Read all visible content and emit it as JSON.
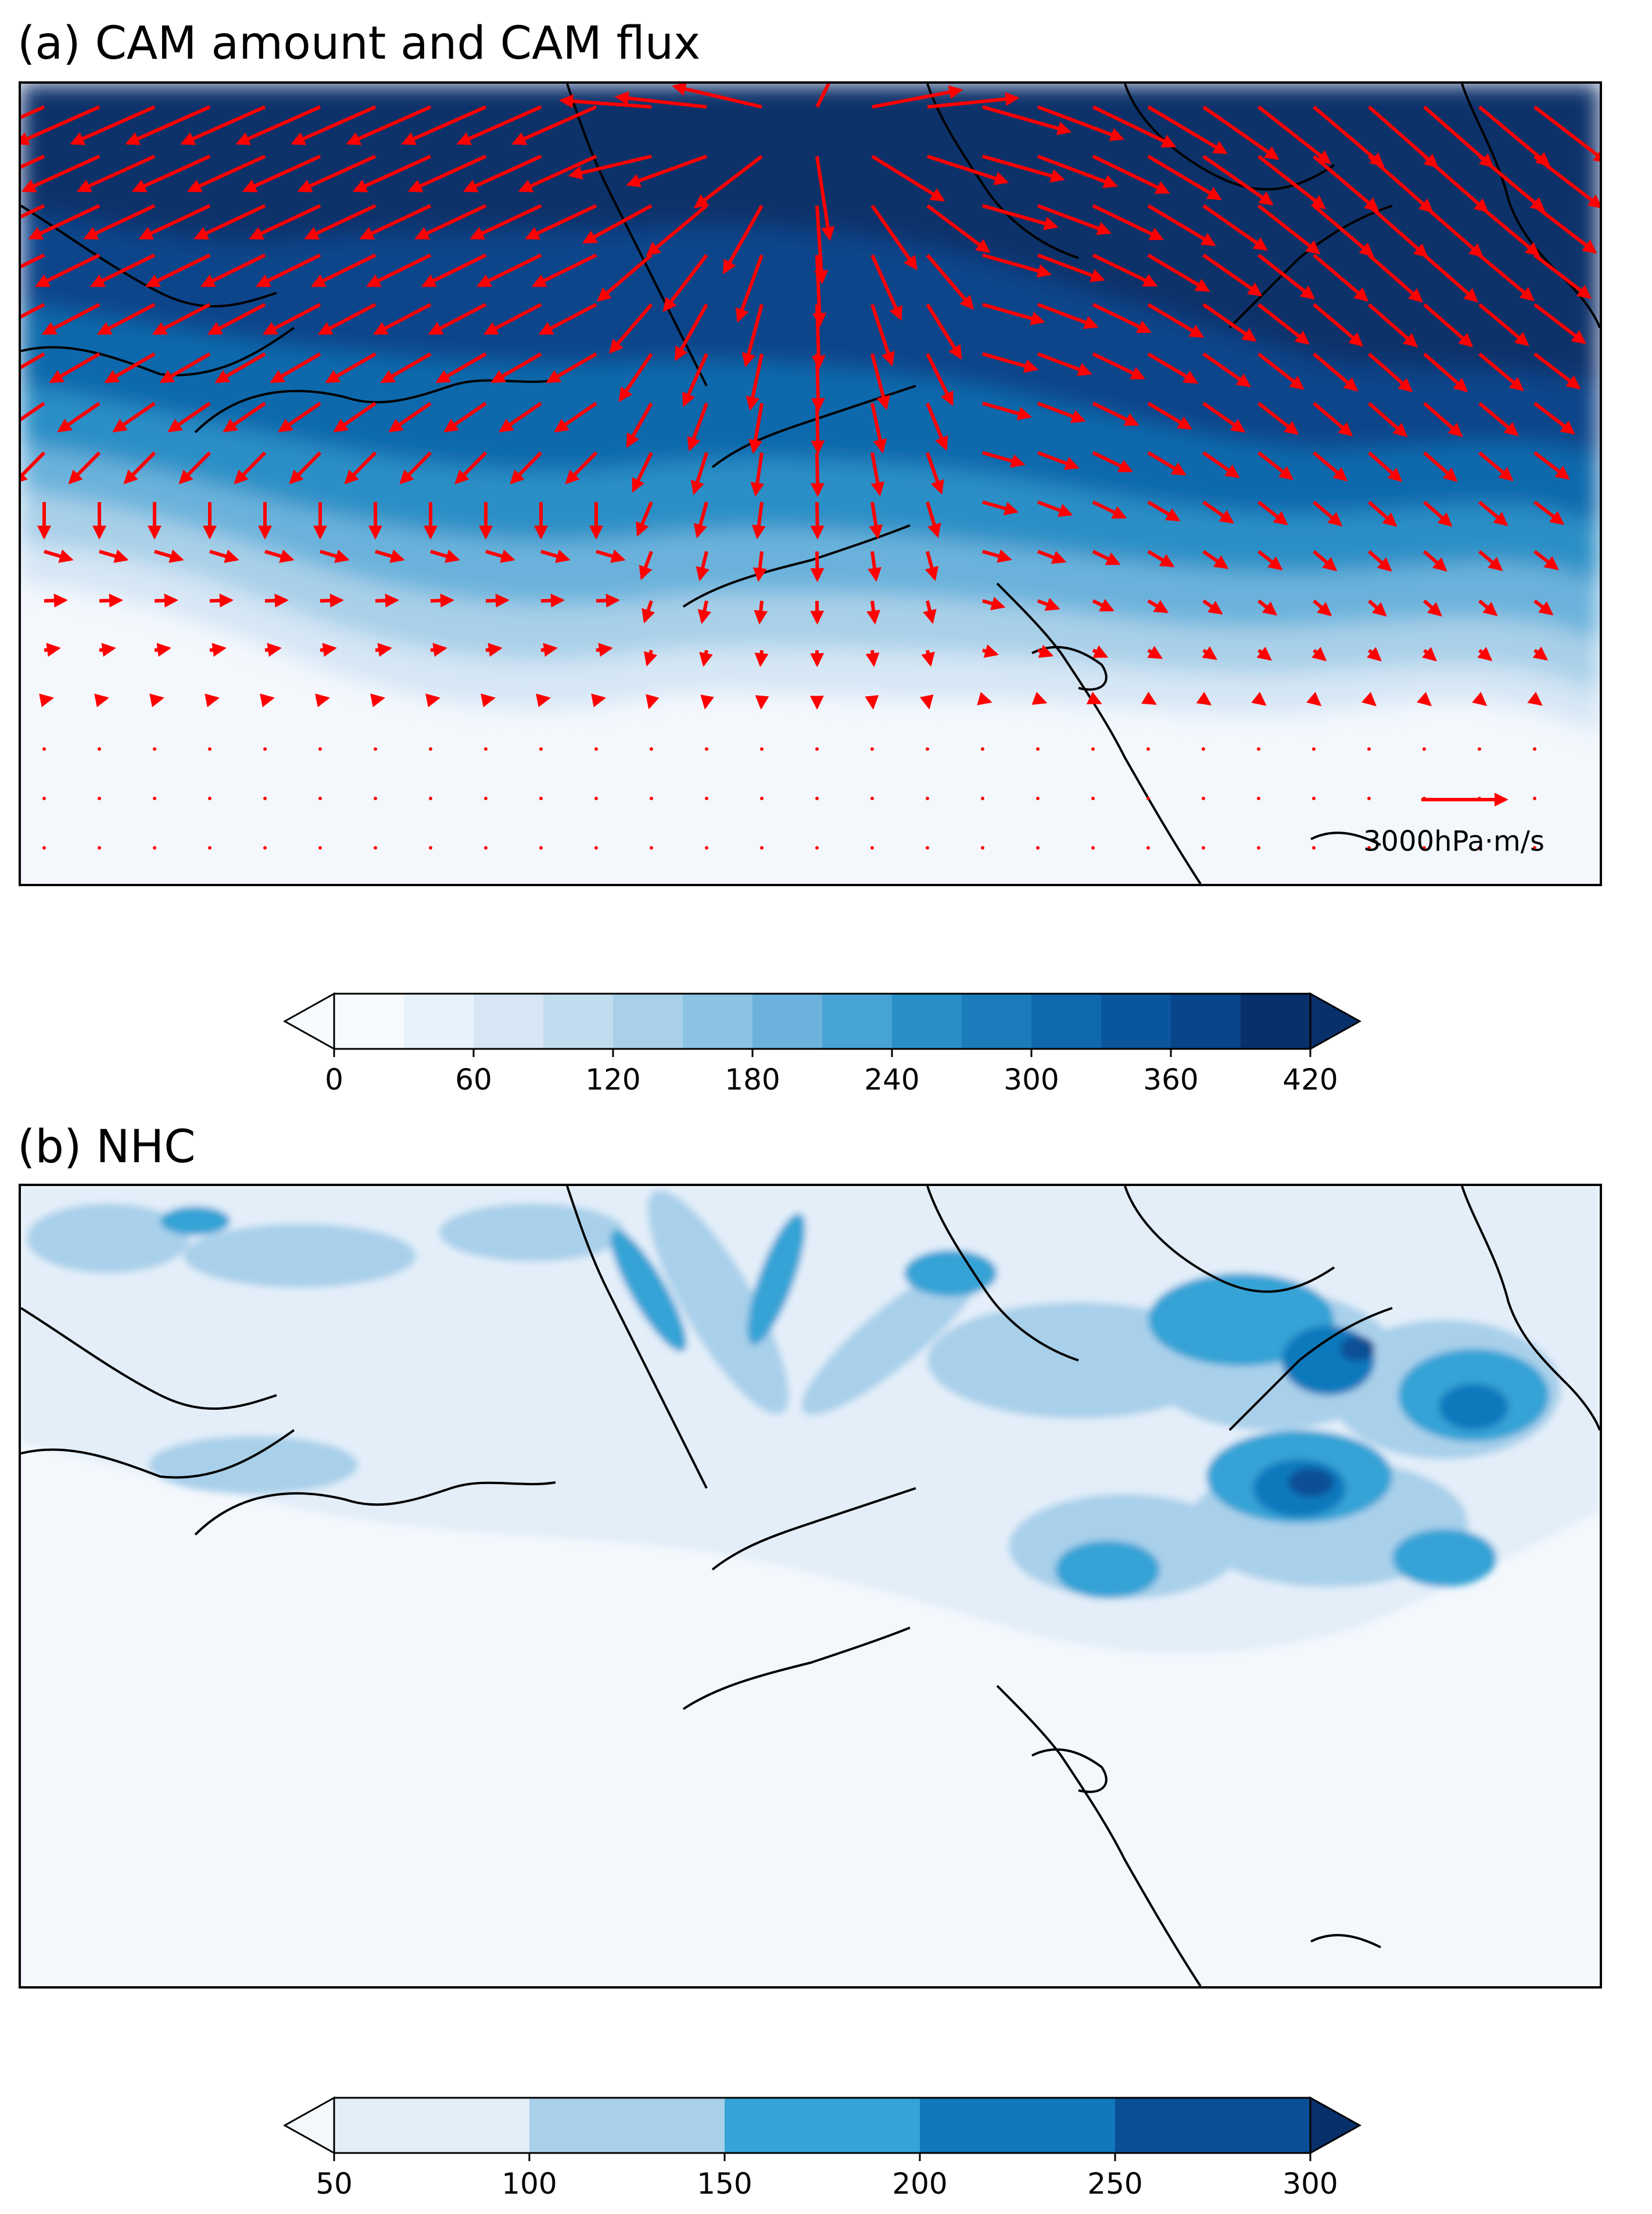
{
  "panels": [
    {
      "id": "a",
      "title": "(a) CAM amount and CAM flux",
      "quiver_key_label": "3000hPa·m/s",
      "colorbar": {
        "extend": "both",
        "levels": [
          0,
          30,
          60,
          90,
          120,
          150,
          180,
          210,
          240,
          270,
          300,
          330,
          360,
          390,
          420
        ],
        "tick_labels": [
          "0",
          "60",
          "120",
          "180",
          "240",
          "300",
          "360",
          "420"
        ],
        "colors": [
          "#f7fbff",
          "#e8f2fc",
          "#d6e6f5",
          "#c2dcef",
          "#a8d0e8",
          "#8cc3e2",
          "#6bb2dc",
          "#47a3d4",
          "#2a8fc6",
          "#1a7cbb",
          "#0f69ac",
          "#0a569c",
          "#08458a",
          "#08306b"
        ],
        "under_color": "#f7fbff",
        "over_color": "#08306b"
      },
      "vectors": {
        "color": "#ff0000"
      }
    },
    {
      "id": "b",
      "title": "(b) NHC",
      "colorbar": {
        "extend": "both",
        "levels": [
          50,
          100,
          150,
          200,
          250,
          300
        ],
        "tick_labels": [
          "50",
          "100",
          "150",
          "200",
          "250",
          "300"
        ],
        "colors": [
          "#e3eef9",
          "#a9d0ea",
          "#35a3d6",
          "#1079bd",
          "#0a4f96"
        ],
        "under_color": "#f4f8fd",
        "over_color": "#08306b"
      }
    }
  ],
  "coastline_color": "#000000"
}
